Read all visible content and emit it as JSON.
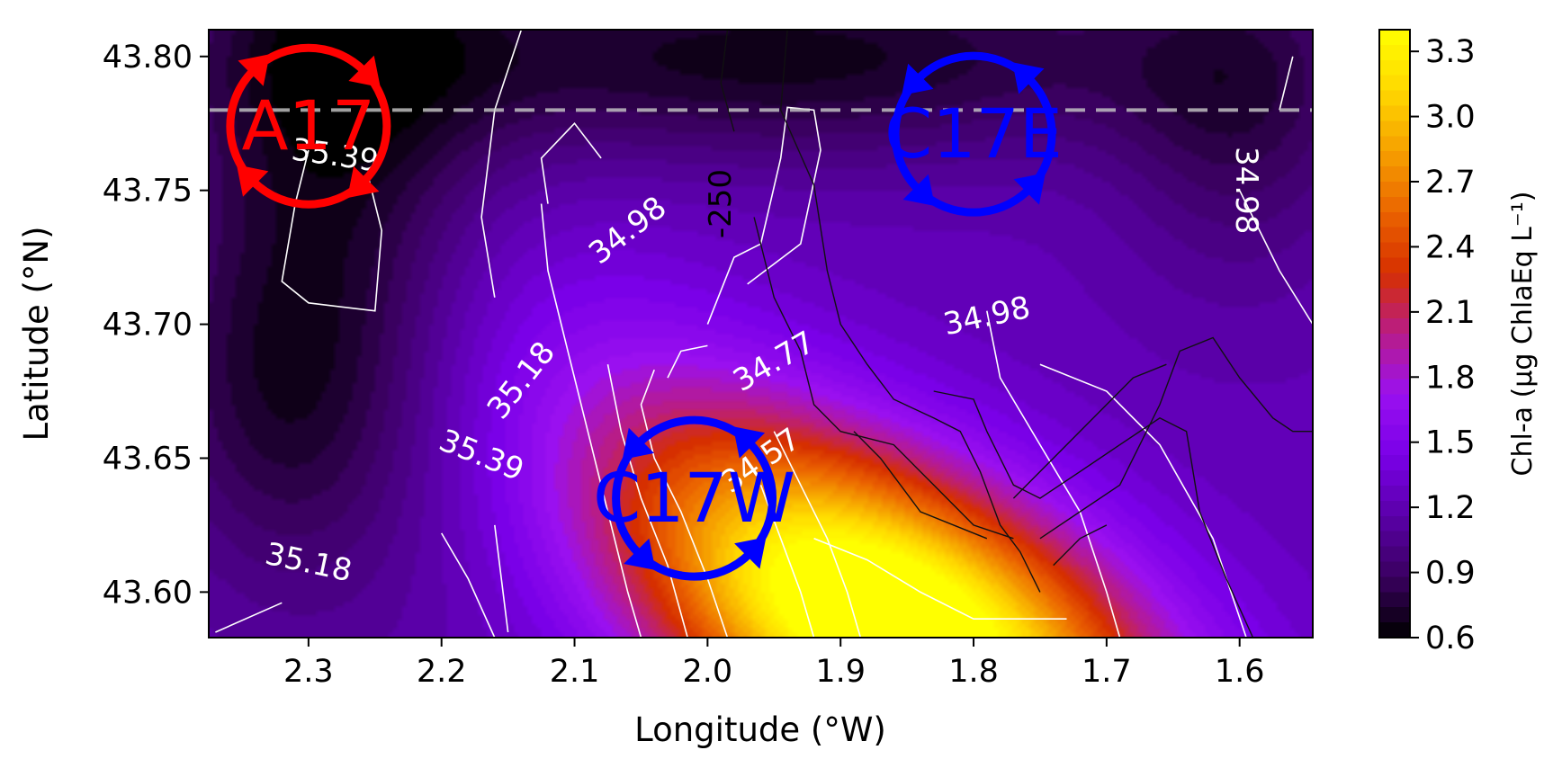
{
  "chart_data": {
    "type": "heatmap",
    "title": "",
    "xlabel": "Longitude (°W)",
    "ylabel": "Latitude (°N)",
    "xlim": [
      2.375,
      1.545
    ],
    "ylim": [
      43.583,
      43.81
    ],
    "x_reversed": true,
    "x_ticks": [
      "2.3",
      "2.2",
      "2.1",
      "2.0",
      "1.9",
      "1.8",
      "1.7",
      "1.6"
    ],
    "x_tick_values": [
      2.3,
      2.2,
      2.1,
      2.0,
      1.9,
      1.8,
      1.7,
      1.6
    ],
    "y_ticks": [
      "43.60",
      "43.65",
      "43.70",
      "43.75",
      "43.80"
    ],
    "y_tick_values": [
      43.6,
      43.65,
      43.7,
      43.75,
      43.8
    ],
    "colorbar": {
      "label": "Chl-a (µg ChlaEq L⁻¹)",
      "ticks": [
        "0.6",
        "0.9",
        "1.2",
        "1.5",
        "1.8",
        "2.1",
        "2.4",
        "2.7",
        "3.0",
        "3.3"
      ],
      "tick_values": [
        0.6,
        0.9,
        1.2,
        1.5,
        1.8,
        2.1,
        2.4,
        2.7,
        3.0,
        3.3
      ],
      "range": [
        0.6,
        3.4
      ],
      "colormap": "gnuplot",
      "colormap_stops": [
        "#000000",
        "#3a0060",
        "#5a00a8",
        "#7a00e8",
        "#9a10f0",
        "#b81c88",
        "#d62f00",
        "#eb6400",
        "#f6a000",
        "#ffd800",
        "#ffff00"
      ]
    },
    "chl_field": {
      "description_values": "Chl-a estimated field",
      "features": [
        {
          "kind": "max",
          "lon": 1.85,
          "lat": 43.585,
          "value": 3.3
        },
        {
          "kind": "min",
          "lon": 2.28,
          "lat": 43.77,
          "value": 0.6
        },
        {
          "kind": "min",
          "lon": 1.92,
          "lat": 43.8,
          "value": 0.6
        }
      ]
    },
    "isohaline_labels": [
      {
        "text": "35.39",
        "lon": 2.28,
        "lat": 43.763,
        "rotation": 8
      },
      {
        "text": "34.98",
        "lon": 2.06,
        "lat": 43.735,
        "rotation": -38
      },
      {
        "text": "-250",
        "lon": 1.99,
        "lat": 43.745,
        "rotation": -90,
        "color": "#000000"
      },
      {
        "text": "34.98",
        "lon": 1.79,
        "lat": 43.703,
        "rotation": -12
      },
      {
        "text": "34.98",
        "lon": 1.595,
        "lat": 43.75,
        "rotation": 90
      },
      {
        "text": "35.18",
        "lon": 2.14,
        "lat": 43.679,
        "rotation": -52
      },
      {
        "text": "34.77",
        "lon": 1.95,
        "lat": 43.686,
        "rotation": -30
      },
      {
        "text": "35.39",
        "lon": 2.17,
        "lat": 43.651,
        "rotation": 22
      },
      {
        "text": "34.57",
        "lon": 1.96,
        "lat": 43.649,
        "rotation": -35
      },
      {
        "text": "35.18",
        "lon": 2.3,
        "lat": 43.611,
        "rotation": 12
      }
    ],
    "dashed_transect_lat": 43.78,
    "eddies": [
      {
        "name": "A17",
        "lon": 2.3,
        "lat": 43.774,
        "type": "anticyclone",
        "color": "#ff0000"
      },
      {
        "name": "C17E",
        "lon": 1.8,
        "lat": 43.771,
        "type": "cyclone",
        "color": "#0000ff"
      },
      {
        "name": "C17W",
        "lon": 2.01,
        "lat": 43.635,
        "type": "cyclone",
        "color": "#0000ff"
      }
    ]
  }
}
